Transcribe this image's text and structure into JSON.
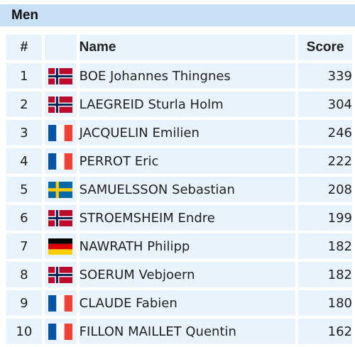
{
  "section": {
    "title": "Men"
  },
  "table": {
    "headers": {
      "rank": "#",
      "name": "Name",
      "score": "Score"
    },
    "rows": [
      {
        "rank": "1",
        "flag": "norway-flag-icon",
        "name": "BOE Johannes Thingnes",
        "score": "339"
      },
      {
        "rank": "2",
        "flag": "norway-flag-icon",
        "name": "LAEGREID Sturla Holm",
        "score": "304"
      },
      {
        "rank": "3",
        "flag": "france-flag-icon",
        "name": "JACQUELIN Emilien",
        "score": "246"
      },
      {
        "rank": "4",
        "flag": "france-flag-icon",
        "name": "PERROT Eric",
        "score": "222"
      },
      {
        "rank": "5",
        "flag": "sweden-flag-icon",
        "name": "SAMUELSSON Sebastian",
        "score": "208"
      },
      {
        "rank": "6",
        "flag": "norway-flag-icon",
        "name": "STROEMSHEIM Endre",
        "score": "199"
      },
      {
        "rank": "7",
        "flag": "germany-flag-icon",
        "name": "NAWRATH Philipp",
        "score": "182"
      },
      {
        "rank": "8",
        "flag": "norway-flag-icon",
        "name": "SOERUM Vebjoern",
        "score": "182"
      },
      {
        "rank": "9",
        "flag": "france-flag-icon",
        "name": "CLAUDE Fabien",
        "score": "180"
      },
      {
        "rank": "10",
        "flag": "france-flag-icon",
        "name": "FILLON MAILLET Quentin",
        "score": "162"
      }
    ]
  }
}
